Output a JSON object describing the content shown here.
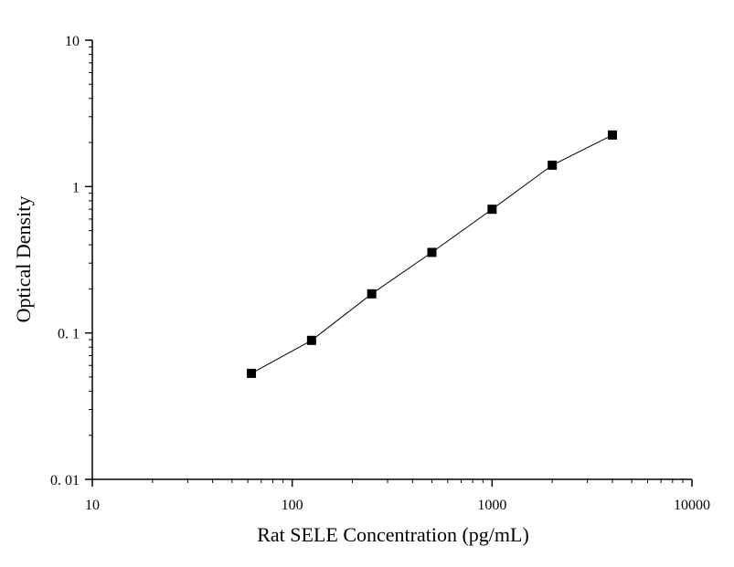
{
  "chart_data": {
    "type": "scatter",
    "title": "",
    "xlabel": "Rat SELE Concentration (pg/mL)",
    "ylabel": "Optical Density",
    "xscale": "log",
    "yscale": "log",
    "xlim": [
      10,
      10000
    ],
    "ylim": [
      0.01,
      10
    ],
    "x_ticks": [
      10,
      100,
      1000,
      10000
    ],
    "x_tick_labels": [
      "10",
      "100",
      "1000",
      "10000"
    ],
    "y_ticks": [
      0.01,
      0.1,
      1,
      10
    ],
    "y_tick_labels": [
      "0. 01",
      "0. 1",
      "1",
      "10"
    ],
    "grid": false,
    "legend": "none",
    "marker": "square",
    "connect_points": true,
    "colors": {
      "marker": "#000000",
      "line": "#000000",
      "axis": "#000000"
    },
    "series": [
      {
        "x": [
          62.5,
          125,
          250,
          500,
          1000,
          2000,
          4000
        ],
        "y": [
          0.053,
          0.089,
          0.185,
          0.355,
          0.7,
          1.4,
          2.25
        ]
      }
    ]
  }
}
